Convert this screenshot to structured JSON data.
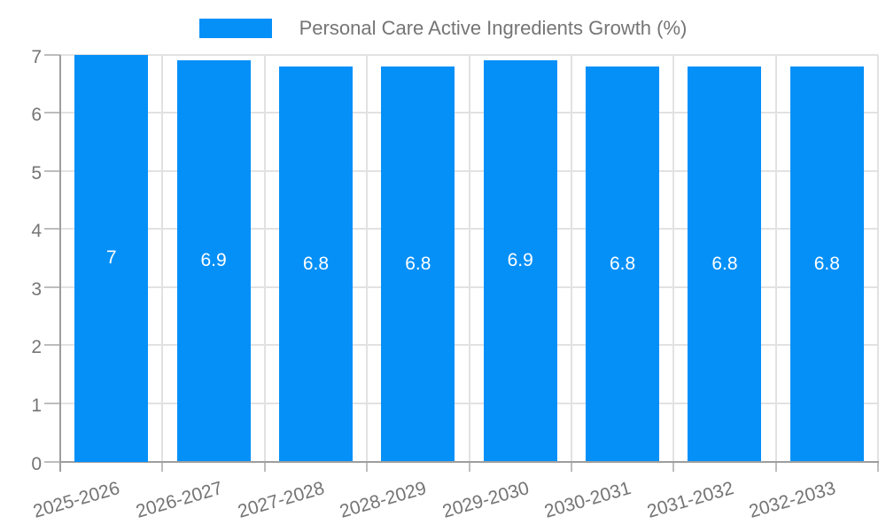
{
  "chart_data": {
    "type": "bar",
    "title": "Personal Care Active Ingredients Growth (%)",
    "categories": [
      "2025-2026",
      "2026-2027",
      "2027-2028",
      "2028-2029",
      "2029-2030",
      "2030-2031",
      "2031-2032",
      "2032-2033"
    ],
    "values": [
      7,
      6.9,
      6.8,
      6.8,
      6.9,
      6.8,
      6.8,
      6.8
    ],
    "bar_labels": [
      "7",
      "6.9",
      "6.8",
      "6.8",
      "6.9",
      "6.8",
      "6.8",
      "6.8"
    ],
    "xlabel": "",
    "ylabel": "",
    "ylim": [
      0,
      7
    ],
    "yticks": [
      "0",
      "1",
      "2",
      "3",
      "4",
      "5",
      "6",
      "7"
    ],
    "grid": true,
    "legend_position": "top",
    "colors": {
      "bar": "#0590f8",
      "text": "#757575",
      "bar_label_text": "#ffffff",
      "axis_line": "#9e9e9e",
      "gridline": "#e2e2e2",
      "tick": "#bdbdbd",
      "background": "#ffffff"
    }
  }
}
